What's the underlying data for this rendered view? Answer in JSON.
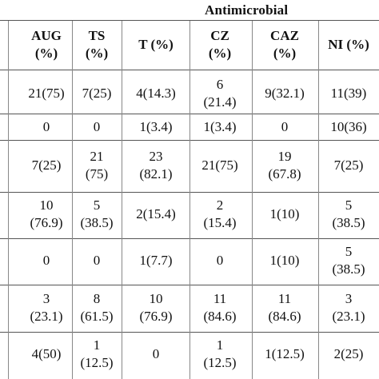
{
  "group_title": "Antimicrobial",
  "columns": [
    {
      "name": "AUG",
      "unit": "(%)"
    },
    {
      "name": "TS",
      "unit": "(%)"
    },
    {
      "name": "T (%)",
      "unit": ""
    },
    {
      "name": "CZ",
      "unit": "(%)"
    },
    {
      "name": "CAZ",
      "unit": "(%)"
    },
    {
      "name": "NI (%)",
      "unit": ""
    }
  ],
  "rows": [
    [
      [
        "21(75)"
      ],
      [
        "7(25)"
      ],
      [
        "4(14.3)"
      ],
      [
        "6",
        "(21.4)"
      ],
      [
        "9(32.1)"
      ],
      [
        "11(39)"
      ]
    ],
    [
      [
        "0"
      ],
      [
        "0"
      ],
      [
        "1(3.4)"
      ],
      [
        "1(3.4)"
      ],
      [
        "0"
      ],
      [
        "10(36)"
      ]
    ],
    [
      [
        "7(25)"
      ],
      [
        "21",
        "(75)"
      ],
      [
        "23",
        "(82.1)"
      ],
      [
        "21(75)"
      ],
      [
        "19",
        "(67.8)"
      ],
      [
        "7(25)"
      ]
    ],
    [
      [
        "10",
        "(76.9)"
      ],
      [
        "5",
        "(38.5)"
      ],
      [
        "2(15.4)"
      ],
      [
        "2",
        "(15.4)"
      ],
      [
        "1(10)"
      ],
      [
        "5",
        "(38.5)"
      ]
    ],
    [
      [
        "0"
      ],
      [
        "0"
      ],
      [
        "1(7.7)"
      ],
      [
        "0"
      ],
      [
        "1(10)"
      ],
      [
        "5",
        "(38.5)"
      ]
    ],
    [
      [
        "3",
        "(23.1)"
      ],
      [
        "8",
        "(61.5)"
      ],
      [
        "10",
        "(76.9)"
      ],
      [
        "11",
        "(84.6)"
      ],
      [
        "11",
        "(84.6)"
      ],
      [
        "3",
        "(23.1)"
      ]
    ],
    [
      [
        "4(50)"
      ],
      [
        "1",
        "(12.5)"
      ],
      [
        "0"
      ],
      [
        "1",
        "(12.5)"
      ],
      [
        "1(12.5)"
      ],
      [
        "2(25)"
      ]
    ]
  ]
}
